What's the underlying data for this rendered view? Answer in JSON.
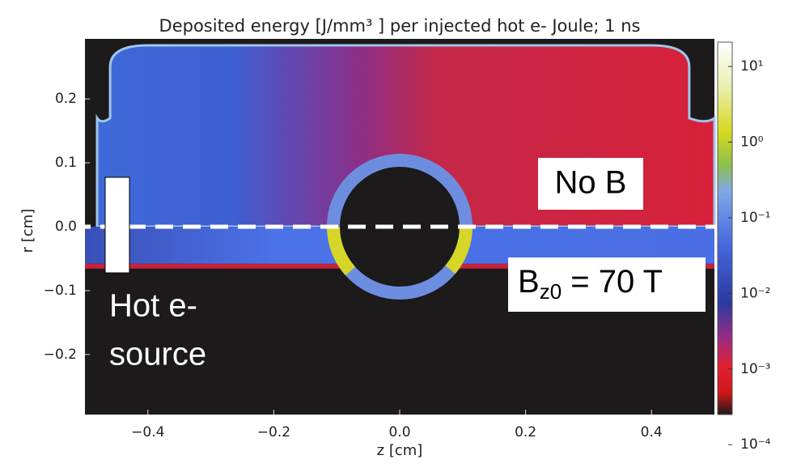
{
  "chart_data": {
    "type": "heatmap",
    "title": "Deposited energy [J/mm³ ] per injected hot e- Joule;  1 ns",
    "xlabel": "z  [cm]",
    "ylabel": "r  [cm]",
    "xlim": [
      -0.5,
      0.5
    ],
    "ylim": [
      -0.294,
      0.294
    ],
    "xticks": [
      {
        "value": -0.4,
        "label": "−0.4"
      },
      {
        "value": -0.2,
        "label": "−0.2"
      },
      {
        "value": 0,
        "label": "0.0"
      },
      0.2,
      0.4
    ],
    "yticks": [
      {
        "value": -0.2,
        "label": "−0.2"
      },
      {
        "value": -0.1,
        "label": "−0.1"
      },
      {
        "value": 0,
        "label": "0.0"
      },
      0.1,
      0.2
    ],
    "colorbar": {
      "scale": "log",
      "lim": [
        0.00025,
        21
      ],
      "ticks": [
        {
          "value": 10,
          "label": "10¹"
        },
        {
          "value": 1,
          "label": "10⁰"
        },
        {
          "value": 0.1,
          "label": "10⁻¹"
        },
        {
          "value": 0.01,
          "label": "10⁻²"
        },
        {
          "value": 0.001,
          "label": "10⁻³"
        },
        {
          "value": 0.0001,
          "label": "10⁻⁴"
        }
      ]
    },
    "annotations": {
      "no_field": "No B",
      "field": {
        "symbol": "B",
        "subscript": "z0",
        "text": " = 70 T"
      },
      "source": [
        "Hot e-",
        "source"
      ]
    }
  }
}
